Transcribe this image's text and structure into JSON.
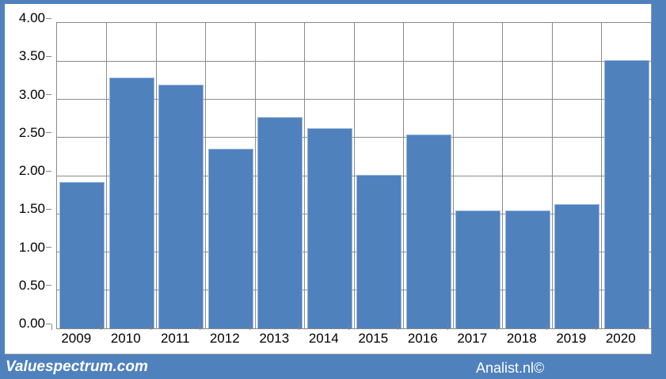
{
  "chart_data": {
    "type": "bar",
    "title": "",
    "categories": [
      "2009",
      "2010",
      "2011",
      "2012",
      "2013",
      "2014",
      "2015",
      "2016",
      "2017",
      "2018",
      "2019",
      "2020"
    ],
    "values": [
      1.92,
      3.28,
      3.19,
      2.35,
      2.77,
      2.62,
      2.01,
      2.54,
      1.54,
      1.54,
      1.63,
      3.51
    ],
    "xlabel": "",
    "ylabel": "",
    "ylim": [
      0,
      4
    ],
    "ytick_step": 0.5,
    "ytick_labels": [
      "0.00",
      "0.50",
      "1.00",
      "1.50",
      "2.00",
      "2.50",
      "3.00",
      "3.50",
      "4.00"
    ],
    "grid": true,
    "legend_position": "none",
    "bar_color": "#4f81bd",
    "bar_border_color": "#98b6da",
    "gridline_color": "#8c8c8c",
    "axis_text_color": "#000000",
    "plot_background": "#ffffff"
  },
  "footer": {
    "brand": "Valuespectrum.com",
    "attribution": "Analist.nl©",
    "background_color": "#4f81bd",
    "text_color": "#ffffff"
  }
}
